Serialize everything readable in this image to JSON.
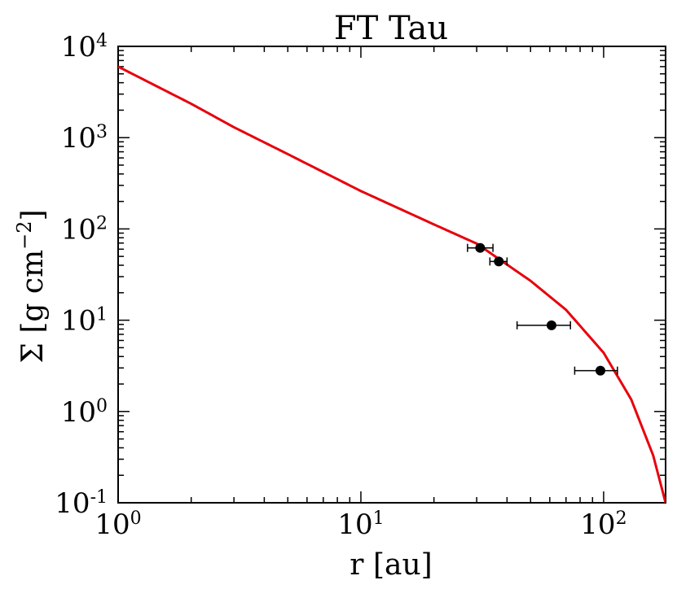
{
  "chart_data": {
    "type": "scatter",
    "title": "FT Tau",
    "xlabel": "r [au]",
    "ylabel": "Σ [g cm",
    "ylabel_exp": "−2",
    "ylabel_close": "]",
    "x_scale": "log",
    "y_scale": "log",
    "xlim": [
      1,
      180
    ],
    "ylim": [
      0.1,
      10000
    ],
    "grid": false,
    "x_ticks": [
      {
        "value": 1,
        "base": "10",
        "exp": "0"
      },
      {
        "value": 10,
        "base": "10",
        "exp": "1"
      },
      {
        "value": 100,
        "base": "10",
        "exp": "2"
      }
    ],
    "y_ticks": [
      {
        "value": 0.1,
        "base": "10",
        "exp": "-1"
      },
      {
        "value": 1,
        "base": "10",
        "exp": "0"
      },
      {
        "value": 10,
        "base": "10",
        "exp": "1"
      },
      {
        "value": 100,
        "base": "10",
        "exp": "2"
      },
      {
        "value": 1000,
        "base": "10",
        "exp": "3"
      },
      {
        "value": 10000,
        "base": "10",
        "exp": "4"
      }
    ],
    "points": [
      {
        "x": 31,
        "y": 62,
        "xerr_low": 27.5,
        "xerr_high": 35
      },
      {
        "x": 37,
        "y": 44,
        "xerr_low": 34,
        "xerr_high": 40
      },
      {
        "x": 61,
        "y": 8.8,
        "xerr_low": 44,
        "xerr_high": 73
      },
      {
        "x": 97,
        "y": 2.8,
        "xerr_low": 76,
        "xerr_high": 114
      }
    ],
    "model_curve": {
      "color": "#e8000b",
      "points": [
        [
          1,
          6000
        ],
        [
          2,
          2350
        ],
        [
          3,
          1300
        ],
        [
          5,
          660
        ],
        [
          10,
          260
        ],
        [
          20,
          112
        ],
        [
          30,
          69
        ],
        [
          50,
          27
        ],
        [
          70,
          13
        ],
        [
          100,
          4.4
        ],
        [
          130,
          1.35
        ],
        [
          160,
          0.33
        ],
        [
          180,
          0.1
        ]
      ]
    },
    "point_color": "#000000"
  }
}
